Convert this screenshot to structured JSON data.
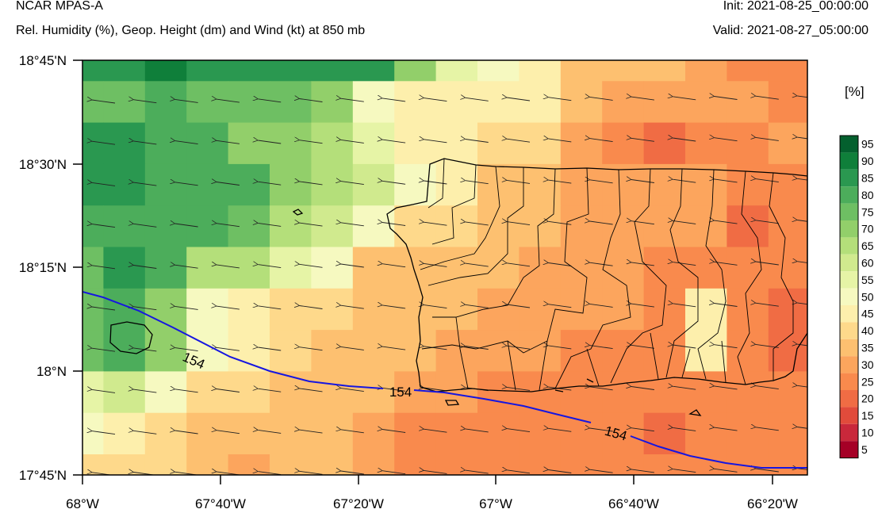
{
  "header": {
    "model": "NCAR MPAS-A",
    "subtitle": "Rel. Humidity (%), Geop. Height (dm) and Wind (kt) at 850 mb",
    "init": "Init: 2021-08-25_00:00:00",
    "valid": "Valid: 2021-08-27_05:00:00"
  },
  "axes": {
    "lat_labels": [
      "18°45'N",
      "18°30'N",
      "18°15'N",
      "18°N",
      "17°45'N"
    ],
    "lon_labels": [
      "68°W",
      "67°40'W",
      "67°20'W",
      "67°W",
      "66°40'W",
      "66°20'W"
    ]
  },
  "colorbar": {
    "unit": "[%]",
    "labels": [
      "95",
      "90",
      "85",
      "80",
      "75",
      "70",
      "65",
      "60",
      "55",
      "50",
      "45",
      "40",
      "35",
      "30",
      "25",
      "20",
      "15",
      "10",
      "5"
    ],
    "colors": [
      "#04602e",
      "#0f7f3a",
      "#2a9850",
      "#4cad5b",
      "#6ebf63",
      "#92cf6a",
      "#b4df7a",
      "#d0ea8e",
      "#e6f4a6",
      "#f6f9c0",
      "#fdefac",
      "#fed98b",
      "#fdc070",
      "#fca55d",
      "#f98a4d",
      "#f06c44",
      "#e14b3b",
      "#c9283b",
      "#a50026"
    ]
  },
  "contour": {
    "labels": [
      "154",
      "154",
      "154"
    ]
  },
  "rh_grid": [
    [
      85,
      85,
      90,
      85,
      85,
      85,
      85,
      85,
      70,
      55,
      50,
      45,
      35,
      35,
      35,
      30,
      25,
      25,
      25
    ],
    [
      75,
      75,
      80,
      75,
      75,
      75,
      70,
      50,
      45,
      45,
      45,
      45,
      35,
      30,
      30,
      30,
      30,
      25,
      25
    ],
    [
      85,
      85,
      80,
      80,
      70,
      70,
      65,
      55,
      45,
      45,
      40,
      40,
      30,
      25,
      20,
      25,
      25,
      30,
      25
    ],
    [
      85,
      85,
      80,
      80,
      80,
      70,
      65,
      60,
      50,
      45,
      35,
      35,
      30,
      30,
      30,
      30,
      25,
      25,
      25
    ],
    [
      80,
      80,
      80,
      80,
      75,
      65,
      60,
      50,
      40,
      40,
      35,
      35,
      30,
      30,
      30,
      30,
      20,
      25,
      25
    ],
    [
      75,
      85,
      80,
      65,
      65,
      55,
      50,
      35,
      35,
      35,
      35,
      30,
      30,
      30,
      25,
      25,
      25,
      25,
      25
    ],
    [
      75,
      80,
      70,
      50,
      45,
      40,
      40,
      35,
      35,
      35,
      30,
      30,
      30,
      30,
      25,
      45,
      25,
      20,
      25
    ],
    [
      75,
      80,
      70,
      50,
      45,
      40,
      35,
      35,
      35,
      30,
      30,
      30,
      25,
      25,
      25,
      45,
      25,
      20,
      25
    ],
    [
      55,
      60,
      50,
      40,
      40,
      35,
      35,
      35,
      30,
      30,
      25,
      25,
      25,
      25,
      25,
      25,
      25,
      25,
      25
    ],
    [
      50,
      45,
      40,
      35,
      35,
      35,
      35,
      30,
      25,
      25,
      25,
      25,
      25,
      25,
      20,
      25,
      25,
      25,
      25
    ],
    [
      40,
      40,
      40,
      35,
      30,
      35,
      35,
      30,
      25,
      25,
      25,
      25,
      25,
      25,
      25,
      25,
      25,
      25,
      25
    ]
  ]
}
